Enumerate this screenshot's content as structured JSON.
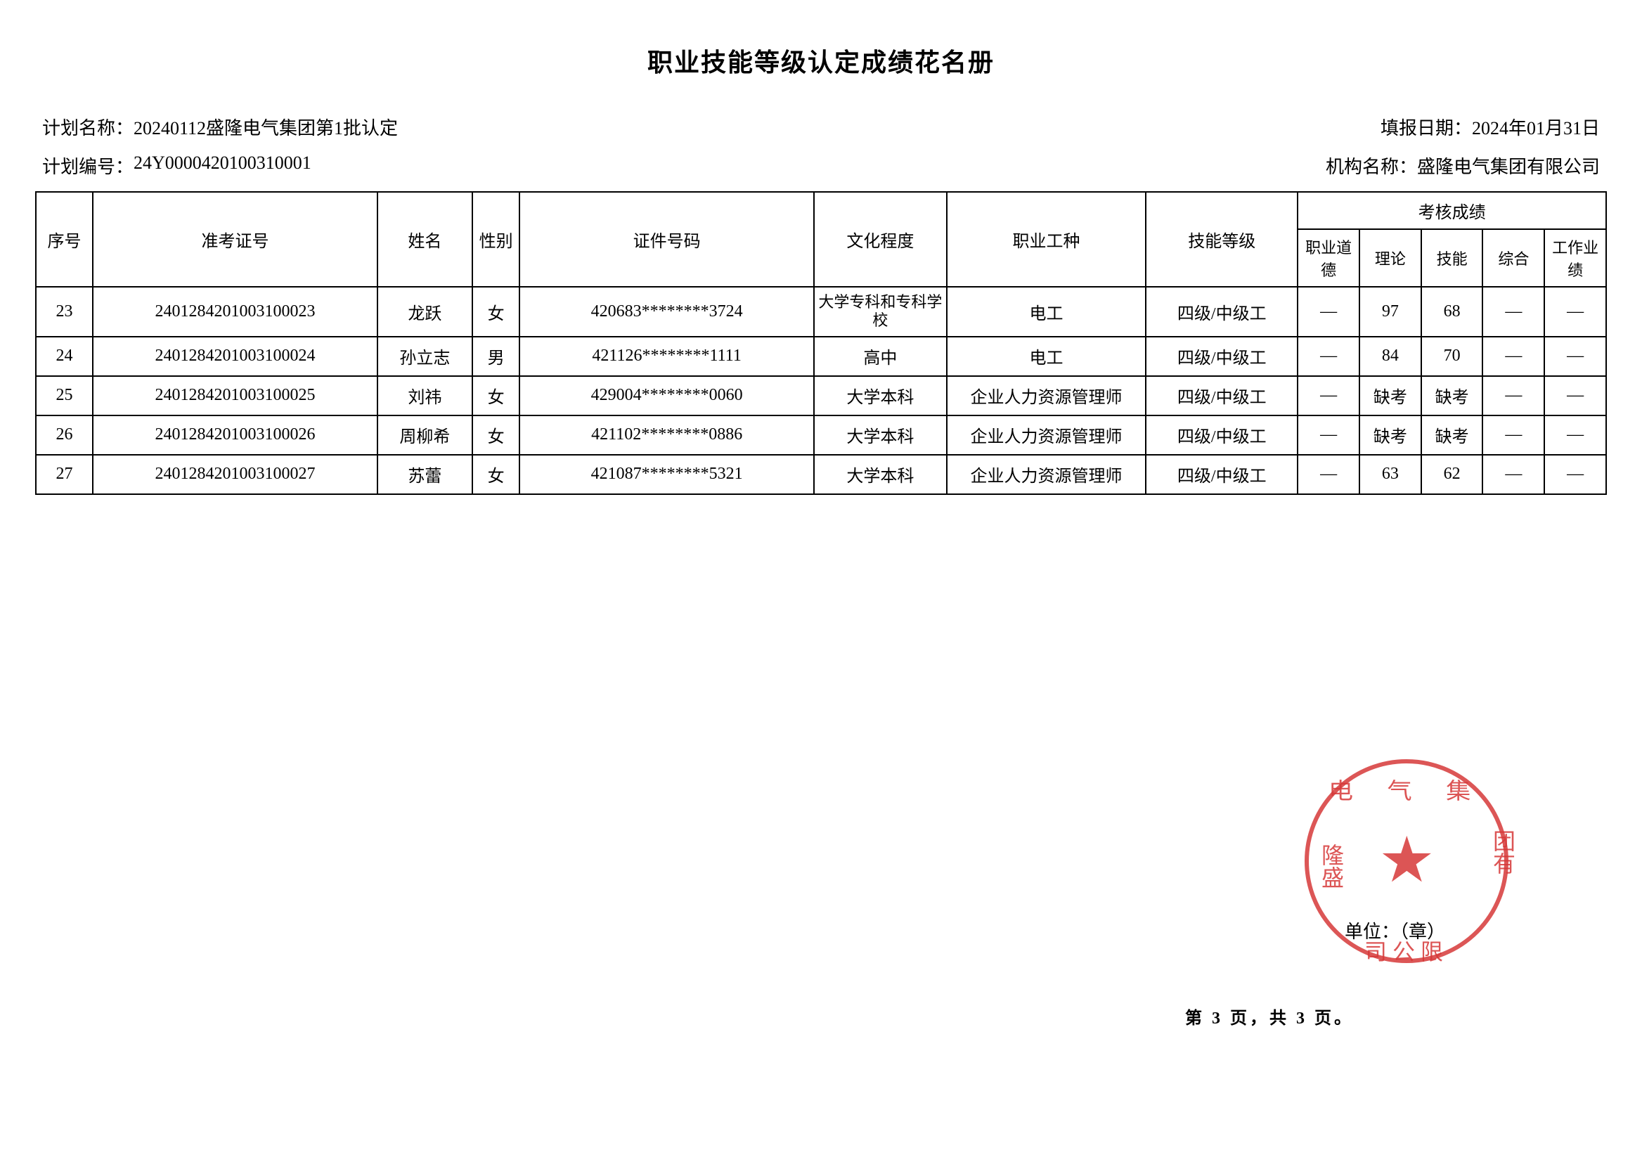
{
  "title": "职业技能等级认定成绩花名册",
  "info": {
    "plan_name_label": "计划名称：",
    "plan_name_value": "20240112盛隆电气集团第1批认定",
    "report_date_label": "填报日期：",
    "report_date_value": "2024年01月31日",
    "plan_id_label": "计划编号：",
    "plan_id_value": "24Y0000420100310001",
    "org_name_label": "机构名称：",
    "org_name_value": "盛隆电气集团有限公司"
  },
  "table": {
    "headers": {
      "seq": "序号",
      "exam_no": "准考证号",
      "name": "姓名",
      "gender": "性别",
      "id_no": "证件号码",
      "education": "文化程度",
      "occupation": "职业工种",
      "skill_level": "技能等级",
      "score_group": "考核成绩",
      "score_ethics": "职业道德",
      "score_theory": "理论",
      "score_skill": "技能",
      "score_composite": "综合",
      "score_work": "工作业绩"
    },
    "rows": [
      {
        "seq": "23",
        "exam_no": "2401284201003100023",
        "name": "龙跃",
        "gender": "女",
        "id_no": "420683********3724",
        "education": "大学专科和专科学校",
        "occupation": "电工",
        "skill_level": "四级/中级工",
        "ethics": "—",
        "theory": "97",
        "skill": "68",
        "composite": "—",
        "work": "—"
      },
      {
        "seq": "24",
        "exam_no": "2401284201003100024",
        "name": "孙立志",
        "gender": "男",
        "id_no": "421126********1111",
        "education": "高中",
        "occupation": "电工",
        "skill_level": "四级/中级工",
        "ethics": "—",
        "theory": "84",
        "skill": "70",
        "composite": "—",
        "work": "—"
      },
      {
        "seq": "25",
        "exam_no": "2401284201003100025",
        "name": "刘祎",
        "gender": "女",
        "id_no": "429004********0060",
        "education": "大学本科",
        "occupation": "企业人力资源管理师",
        "skill_level": "四级/中级工",
        "ethics": "—",
        "theory": "缺考",
        "skill": "缺考",
        "composite": "—",
        "work": "—"
      },
      {
        "seq": "26",
        "exam_no": "2401284201003100026",
        "name": "周柳希",
        "gender": "女",
        "id_no": "421102********0886",
        "education": "大学本科",
        "occupation": "企业人力资源管理师",
        "skill_level": "四级/中级工",
        "ethics": "—",
        "theory": "缺考",
        "skill": "缺考",
        "composite": "—",
        "work": "—"
      },
      {
        "seq": "27",
        "exam_no": "2401284201003100027",
        "name": "苏蕾",
        "gender": "女",
        "id_no": "421087********5321",
        "education": "大学本科",
        "occupation": "企业人力资源管理师",
        "skill_level": "四级/中级工",
        "ethics": "—",
        "theory": "63",
        "skill": "62",
        "composite": "—",
        "work": "—"
      }
    ]
  },
  "stamp": {
    "text_top": "电 气 集",
    "text_left": "隆盛",
    "text_right": "团有",
    "text_bottom": "司公限",
    "color": "#d63838"
  },
  "unit_label": "单位：（章）",
  "footer": {
    "current_page": "3",
    "total_pages": "3",
    "text": "第 3 页，共 3 页。"
  }
}
